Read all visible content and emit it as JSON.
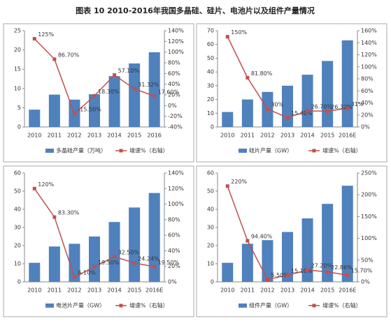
{
  "title": "图表 10  2010-2016年我国多晶硅、硅片、电池片以及组件产量情况",
  "chart_data": [
    {
      "type": "combo",
      "categories": [
        "2010",
        "2011",
        "2012",
        "2013",
        "2014",
        "2015",
        "2016"
      ],
      "ylim": [
        0,
        25
      ],
      "yticks": [
        0,
        5,
        10,
        15,
        20,
        25
      ],
      "y2lim": [
        -40,
        140
      ],
      "y2ticks": [
        {
          "value": -40,
          "label": "-40%"
        },
        {
          "value": -20,
          "label": "-20%"
        },
        {
          "value": 0,
          "label": "0%"
        },
        {
          "value": 20,
          "label": "20%"
        },
        {
          "value": 40,
          "label": "40%"
        },
        {
          "value": 60,
          "label": "60%"
        },
        {
          "value": 80,
          "label": "80%"
        },
        {
          "value": 100,
          "label": "100%"
        },
        {
          "value": 120,
          "label": "120%"
        },
        {
          "value": 140,
          "label": "140%"
        }
      ],
      "series": [
        {
          "name": "多晶硅产量（万吨）",
          "color": "#4f81bd",
          "values": [
            4.5,
            8.4,
            7.1,
            8.5,
            13.2,
            16.5,
            19.4
          ]
        },
        {
          "name": "增速%（右轴）",
          "color": "#c0504d",
          "axis": "y2",
          "values": [
            125,
            86.7,
            -15.5,
            18.3,
            57.1,
            31.32,
            17.6
          ],
          "value_labels": [
            "125%",
            "86.70%",
            "-15.50%",
            "18.30%",
            "57.10%",
            "31.32%",
            "17.60%"
          ]
        }
      ]
    },
    {
      "type": "combo",
      "categories": [
        "2010",
        "2011",
        "2012",
        "2013",
        "2014",
        "2015",
        "2016E"
      ],
      "ylim": [
        0,
        70
      ],
      "yticks": [
        0,
        10,
        20,
        30,
        40,
        50,
        60,
        70
      ],
      "y2lim": [
        0,
        160
      ],
      "y2ticks": [
        {
          "value": 0,
          "label": "0%"
        },
        {
          "value": 20,
          "label": "20%"
        },
        {
          "value": 40,
          "label": "40%"
        },
        {
          "value": 60,
          "label": "60%"
        },
        {
          "value": 80,
          "label": "80%"
        },
        {
          "value": 100,
          "label": "100%"
        },
        {
          "value": 120,
          "label": "120%"
        },
        {
          "value": 140,
          "label": "140%"
        },
        {
          "value": 160,
          "label": "160%"
        }
      ],
      "series": [
        {
          "name": "硅片产量（GW）",
          "color": "#4f81bd",
          "values": [
            10.9,
            20,
            25.5,
            30,
            38,
            48,
            63
          ]
        },
        {
          "name": "增速%（右轴）",
          "color": "#c0504d",
          "axis": "y2",
          "values": [
            150,
            81.8,
            30,
            15.4,
            26.7,
            26.32,
            31
          ],
          "value_labels": [
            "150%",
            "81.80%",
            "30%",
            "15.40%",
            "26.70%",
            "26.32%",
            "31%"
          ]
        }
      ]
    },
    {
      "type": "combo",
      "categories": [
        "2010",
        "2011",
        "2012",
        "2013",
        "2014",
        "2015",
        "2016E"
      ],
      "ylim": [
        0,
        60
      ],
      "yticks": [
        0,
        10,
        20,
        30,
        40,
        50,
        60
      ],
      "y2lim": [
        0,
        140
      ],
      "y2ticks": [
        {
          "value": 0,
          "label": "0%"
        },
        {
          "value": 20,
          "label": "20%"
        },
        {
          "value": 40,
          "label": "40%"
        },
        {
          "value": 60,
          "label": "60%"
        },
        {
          "value": 80,
          "label": "80%"
        },
        {
          "value": 100,
          "label": "100%"
        },
        {
          "value": 120,
          "label": "120%"
        },
        {
          "value": 140,
          "label": "140%"
        }
      ],
      "series": [
        {
          "name": "电池片产量（GW）",
          "color": "#4f81bd",
          "values": [
            10.5,
            19.5,
            21,
            25,
            33,
            41,
            49
          ]
        },
        {
          "name": "增速%（右轴）",
          "color": "#c0504d",
          "axis": "y2",
          "values": [
            120,
            83.3,
            6.1,
            19.5,
            32.5,
            24.24,
            19.5
          ],
          "value_labels": [
            "120%",
            "83.30%",
            "6.10%",
            "19.50%",
            "32.50%",
            "24.24%",
            "19.50%"
          ]
        }
      ]
    },
    {
      "type": "combo",
      "categories": [
        "2010",
        "2011",
        "2012",
        "2013",
        "2014",
        "2015",
        "2016E"
      ],
      "ylim": [
        0,
        60
      ],
      "yticks": [
        0,
        10,
        20,
        30,
        40,
        50,
        60
      ],
      "y2lim": [
        0,
        250
      ],
      "y2ticks": [
        {
          "value": 0,
          "label": "0%"
        },
        {
          "value": 50,
          "label": "50%"
        },
        {
          "value": 100,
          "label": "100%"
        },
        {
          "value": 150,
          "label": "150%"
        },
        {
          "value": 200,
          "label": "200%"
        },
        {
          "value": 250,
          "label": "250%"
        }
      ],
      "series": [
        {
          "name": "组件产量（GW）",
          "color": "#4f81bd",
          "values": [
            10.5,
            21,
            23,
            27.5,
            35,
            43,
            53
          ]
        },
        {
          "name": "增速%（右轴）",
          "color": "#c0504d",
          "axis": "y2",
          "values": [
            220,
            94.4,
            5.5,
            15.1,
            27.2,
            22.86,
            15.7
          ],
          "value_labels": [
            "220%",
            "94.40%",
            "5.50%",
            "15.10%",
            "27.20%",
            "22.86%",
            "15.70%"
          ]
        }
      ]
    }
  ]
}
